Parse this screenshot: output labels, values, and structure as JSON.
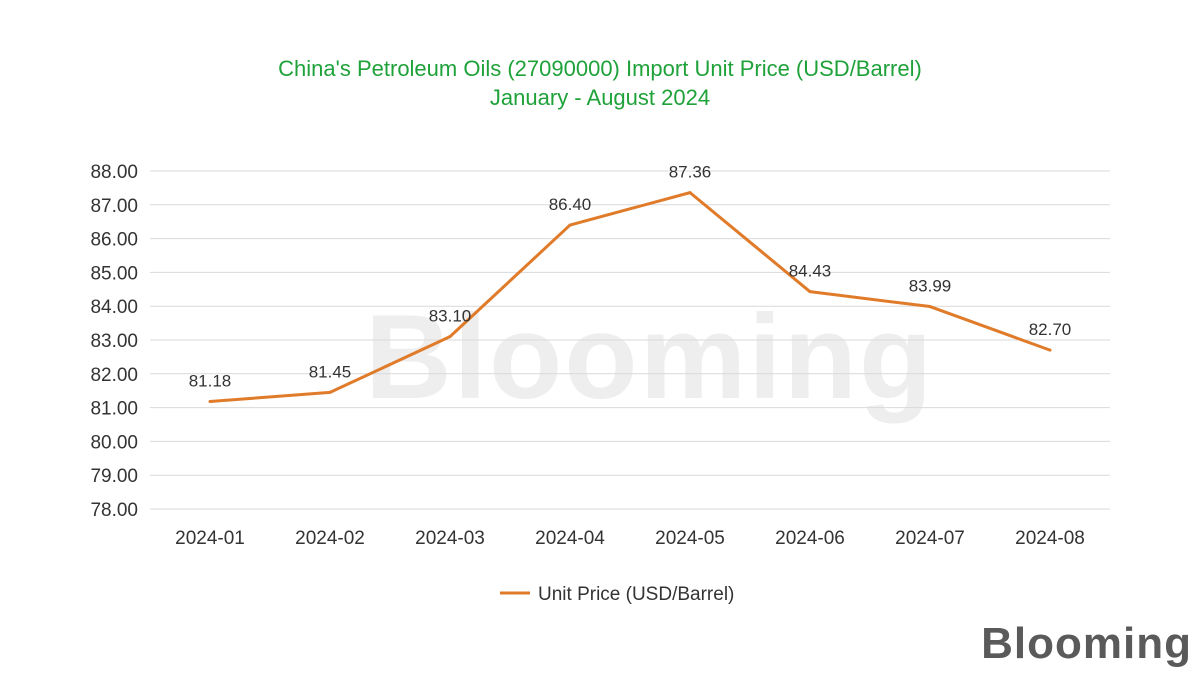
{
  "chart_data": {
    "type": "line",
    "title": "China's Petroleum Oils (27090000) Import Unit Price (USD/Barrel)",
    "subtitle": "January - August 2024",
    "categories": [
      "2024-01",
      "2024-02",
      "2024-03",
      "2024-04",
      "2024-05",
      "2024-06",
      "2024-07",
      "2024-08"
    ],
    "series": [
      {
        "name": "Unit Price (USD/Barrel)",
        "values": [
          81.18,
          81.45,
          83.1,
          86.4,
          87.36,
          84.43,
          83.99,
          82.7
        ],
        "labels": [
          "81.18",
          "81.45",
          "83.10",
          "86.40",
          "87.36",
          "84.43",
          "83.99",
          "82.70"
        ],
        "color": "#e07b2a"
      }
    ],
    "ylim": [
      78,
      88
    ],
    "yticks": [
      "78.00",
      "79.00",
      "80.00",
      "81.00",
      "82.00",
      "83.00",
      "84.00",
      "85.00",
      "86.00",
      "87.00",
      "88.00"
    ],
    "grid": true,
    "legend_position": "bottom"
  },
  "colors": {
    "title": "#1fa23a",
    "gridline": "#d9d9d9",
    "line": "#e07b2a"
  },
  "watermark": "Blooming",
  "brand_logo": "Blooming"
}
